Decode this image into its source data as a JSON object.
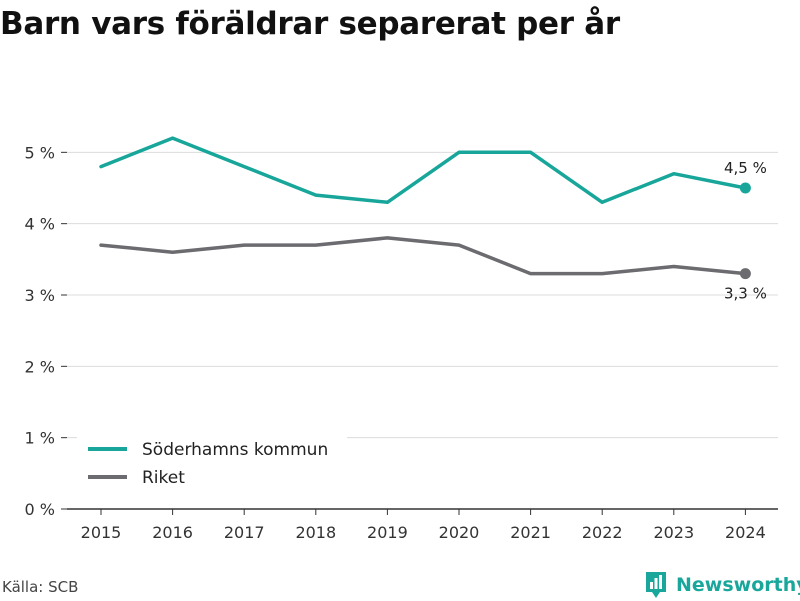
{
  "chart_data": {
    "type": "line",
    "title": "Barn vars föräldrar separerat per år",
    "xlabel": "",
    "ylabel": "",
    "x": [
      "2015",
      "2016",
      "2017",
      "2018",
      "2019",
      "2020",
      "2021",
      "2022",
      "2023",
      "2024"
    ],
    "yticks": [
      "0 %",
      "1 %",
      "2 %",
      "3 %",
      "4 %",
      "5 %"
    ],
    "ylim": [
      0,
      6
    ],
    "grid": true,
    "legend_position": "bottom-left",
    "series": [
      {
        "name": "Söderhamns kommun",
        "color": "#18a69b",
        "values": [
          4.8,
          5.2,
          4.8,
          4.4,
          4.3,
          5.0,
          5.0,
          4.3,
          4.7,
          4.5
        ],
        "end_label": "4,5 %"
      },
      {
        "name": "Riket",
        "color": "#6b6b70",
        "values": [
          3.7,
          3.6,
          3.7,
          3.7,
          3.8,
          3.7,
          3.3,
          3.3,
          3.4,
          3.3
        ],
        "end_label": "3,3 %"
      }
    ]
  },
  "source": "Källa: SCB",
  "brand": {
    "name": "Newsworthy",
    "color": "#19a79b",
    "icon": "bar-chart-icon"
  }
}
